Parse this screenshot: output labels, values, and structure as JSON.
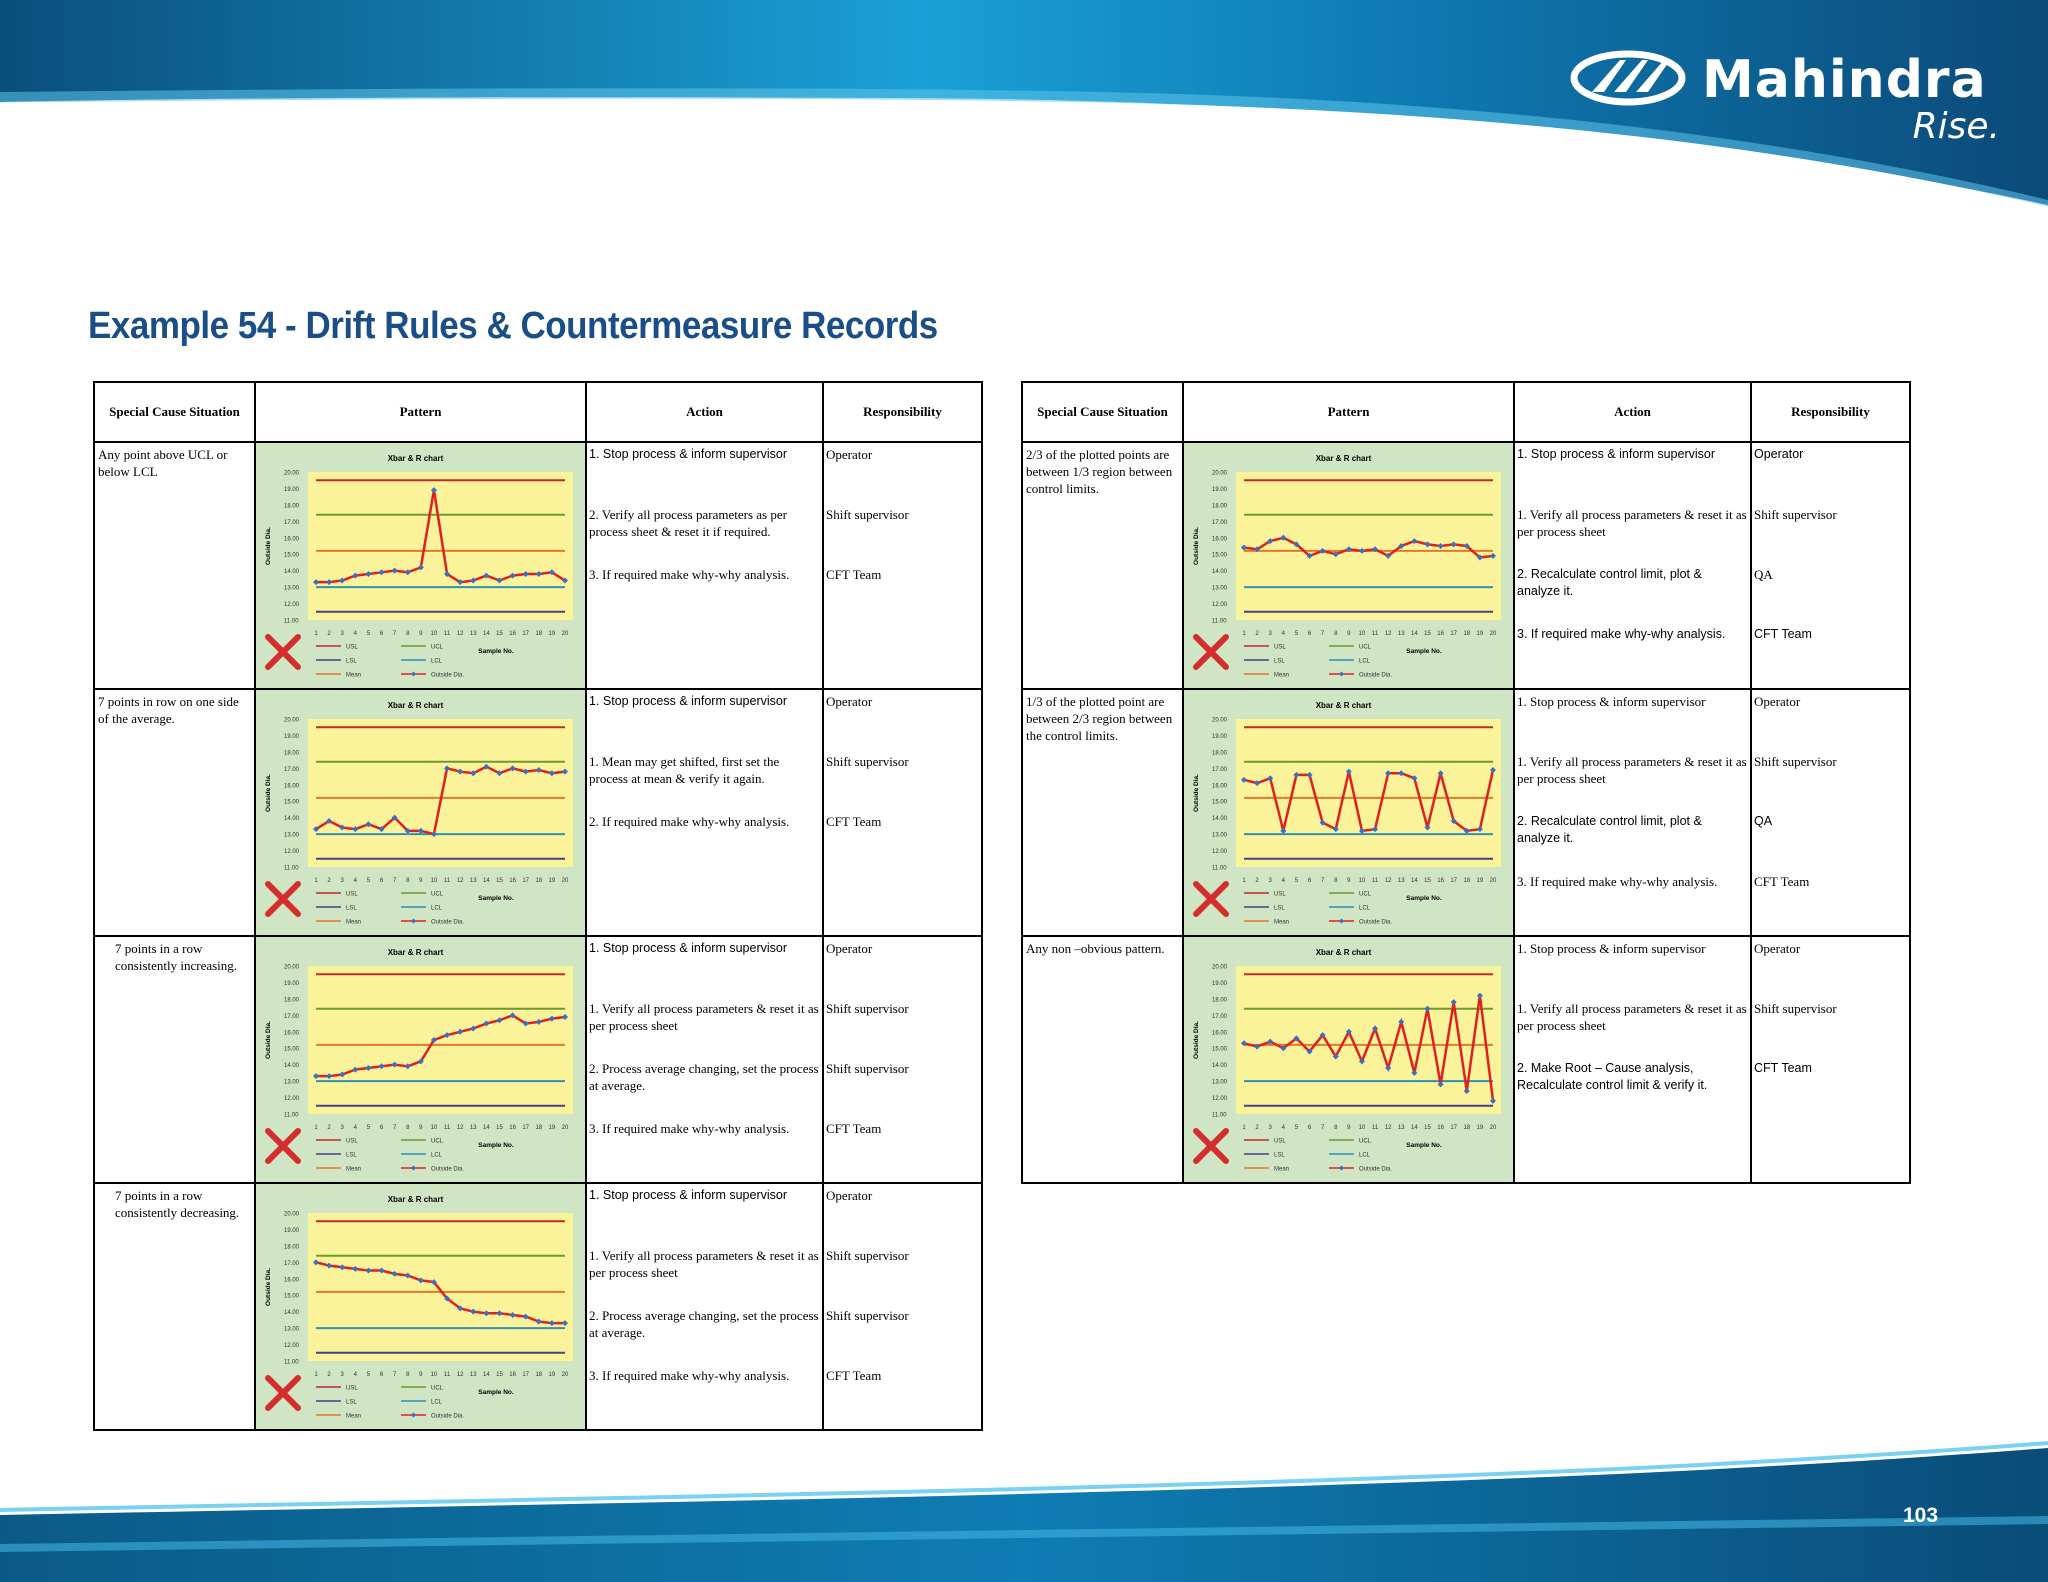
{
  "brand": {
    "name": "Mahindra",
    "tagline": "Rise."
  },
  "page_title": "Example 54 - Drift Rules & Countermeasure Records",
  "page_number": "103",
  "table_headers": [
    "Special Cause Situation",
    "Pattern",
    "Action",
    "Responsibility"
  ],
  "chart_common": {
    "title": "Xbar & R chart",
    "xlabel": "Sample No.",
    "ylabel": "Outside Dia.",
    "y_ticks": [
      "20.00",
      "19.00",
      "18.00",
      "17.00",
      "16.00",
      "15.00",
      "14.00",
      "13.00",
      "12.00",
      "11.00"
    ],
    "x_ticks": [
      "1",
      "2",
      "3",
      "4",
      "5",
      "6",
      "7",
      "8",
      "9",
      "10",
      "11",
      "12",
      "13",
      "14",
      "15",
      "16",
      "17",
      "18",
      "19",
      "20"
    ],
    "legend": [
      "USL",
      "UCL",
      "LSL",
      "LCL",
      "Mean",
      "Outside Dia."
    ],
    "ylim": [
      11,
      20
    ],
    "limits": {
      "USL": 19.5,
      "UCL": 17.4,
      "Mean": 15.2,
      "LCL": 13.0,
      "LSL": 11.5
    },
    "colors": {
      "USL": "#c0282d",
      "UCL": "#6c9a2c",
      "LSL": "#4a3e8a",
      "LCL": "#2f8fb8",
      "Mean": "#e07b2a",
      "series_line": "#e02020",
      "series_point": "#3a6fc4",
      "plot_bg": "#fbf39a",
      "panel_bg": "#cfe5c4",
      "x_mark": "#d42d2d"
    }
  },
  "left_rows": [
    {
      "situation": "Any point above UCL or below LCL",
      "indent": false,
      "chart_data": {
        "type": "line",
        "x": [
          1,
          2,
          3,
          4,
          5,
          6,
          7,
          8,
          9,
          10,
          11,
          12,
          13,
          14,
          15,
          16,
          17,
          18,
          19,
          20
        ],
        "series": [
          {
            "name": "Outside Dia.",
            "values": [
              13.3,
              13.3,
              13.4,
              13.7,
              13.8,
              13.9,
              14.0,
              13.9,
              14.2,
              18.9,
              13.8,
              13.3,
              13.4,
              13.7,
              13.4,
              13.7,
              13.8,
              13.8,
              13.9,
              13.4
            ]
          }
        ],
        "ylim": [
          11,
          20
        ]
      },
      "lines": [
        {
          "action": "1. Stop process & inform supervisor",
          "action_font": "sans",
          "resp": "Operator",
          "resp_font": "serif"
        },
        {
          "action": "2. Verify all process parameters as per process sheet & reset it if required.",
          "action_font": "serif",
          "resp": "Shift supervisor",
          "resp_font": "serif"
        },
        {
          "action": "3. If required make why-why analysis.",
          "action_font": "serif",
          "resp": "CFT Team",
          "resp_font": "serif"
        }
      ]
    },
    {
      "situation": "7 points in row on one side of the average.",
      "indent": false,
      "chart_data": {
        "type": "line",
        "x": [
          1,
          2,
          3,
          4,
          5,
          6,
          7,
          8,
          9,
          10,
          11,
          12,
          13,
          14,
          15,
          16,
          17,
          18,
          19,
          20
        ],
        "series": [
          {
            "name": "Outside Dia.",
            "values": [
              13.3,
              13.8,
              13.4,
              13.3,
              13.6,
              13.3,
              14.0,
              13.2,
              13.2,
              13.0,
              17.0,
              16.8,
              16.7,
              17.1,
              16.7,
              17.0,
              16.8,
              16.9,
              16.7,
              16.8
            ]
          }
        ],
        "ylim": [
          11,
          20
        ]
      },
      "lines": [
        {
          "action": "1. Stop process & inform supervisor",
          "action_font": "sans",
          "resp": "Operator",
          "resp_font": "serif"
        },
        {
          "action": "1. Mean may get shifted, first set the process at mean & verify it again.",
          "action_font": "serif",
          "resp": "Shift supervisor",
          "resp_font": "serif"
        },
        {
          "action": "2. If required make why-why analysis.",
          "action_font": "serif",
          "resp": "CFT Team",
          "resp_font": "serif"
        }
      ]
    },
    {
      "situation": "7 points in a row consistently increasing.",
      "indent": true,
      "chart_data": {
        "type": "line",
        "x": [
          1,
          2,
          3,
          4,
          5,
          6,
          7,
          8,
          9,
          10,
          11,
          12,
          13,
          14,
          15,
          16,
          17,
          18,
          19,
          20
        ],
        "series": [
          {
            "name": "Outside Dia.",
            "values": [
              13.3,
              13.3,
              13.4,
              13.7,
              13.8,
              13.9,
              14.0,
              13.9,
              14.2,
              15.5,
              15.8,
              16.0,
              16.2,
              16.5,
              16.7,
              17.0,
              16.5,
              16.6,
              16.8,
              16.9
            ]
          }
        ],
        "ylim": [
          11,
          20
        ]
      },
      "lines": [
        {
          "action": "1. Stop process & inform supervisor",
          "action_font": "sans",
          "resp": "Operator",
          "resp_font": "serif"
        },
        {
          "action": "1. Verify all process parameters & reset it as per process sheet",
          "action_font": "serif",
          "resp": "Shift supervisor",
          "resp_font": "serif"
        },
        {
          "action": "2. Process average changing, set the process at average.",
          "action_font": "serif",
          "resp": "Shift supervisor",
          "resp_font": "serif"
        },
        {
          "action": "3. If required make why-why analysis.",
          "action_font": "serif",
          "resp": "CFT Team",
          "resp_font": "serif"
        }
      ]
    },
    {
      "situation": "7 points in a row consistently decreasing.",
      "indent": true,
      "chart_data": {
        "type": "line",
        "x": [
          1,
          2,
          3,
          4,
          5,
          6,
          7,
          8,
          9,
          10,
          11,
          12,
          13,
          14,
          15,
          16,
          17,
          18,
          19,
          20
        ],
        "series": [
          {
            "name": "Outside Dia.",
            "values": [
              17.0,
              16.8,
              16.7,
              16.6,
              16.5,
              16.5,
              16.3,
              16.2,
              15.9,
              15.8,
              14.8,
              14.2,
              14.0,
              13.9,
              13.9,
              13.8,
              13.7,
              13.4,
              13.3,
              13.3
            ]
          }
        ],
        "ylim": [
          11,
          20
        ]
      },
      "lines": [
        {
          "action": "1. Stop process & inform supervisor",
          "action_font": "sans",
          "resp": "Operator",
          "resp_font": "serif"
        },
        {
          "action": "1. Verify all process parameters & reset it as per process sheet",
          "action_font": "serif",
          "resp": "Shift supervisor",
          "resp_font": "serif"
        },
        {
          "action": "2. Process average changing, set the process at average.",
          "action_font": "serif",
          "resp": "Shift supervisor",
          "resp_font": "serif"
        },
        {
          "action": "3. If required make why-why analysis.",
          "action_font": "serif",
          "resp": "CFT Team",
          "resp_font": "serif"
        }
      ]
    }
  ],
  "right_rows": [
    {
      "situation": "2/3 of the plotted points are between 1/3 region between control limits.",
      "indent": false,
      "chart_data": {
        "type": "line",
        "x": [
          1,
          2,
          3,
          4,
          5,
          6,
          7,
          8,
          9,
          10,
          11,
          12,
          13,
          14,
          15,
          16,
          17,
          18,
          19,
          20
        ],
        "series": [
          {
            "name": "Outside Dia.",
            "values": [
              15.4,
              15.3,
              15.8,
              16.0,
              15.6,
              14.9,
              15.2,
              15.0,
              15.3,
              15.2,
              15.3,
              14.9,
              15.5,
              15.8,
              15.6,
              15.5,
              15.6,
              15.5,
              14.8,
              14.9
            ]
          }
        ],
        "ylim": [
          11,
          20
        ]
      },
      "lines": [
        {
          "action": "1. Stop process & inform supervisor",
          "action_font": "sans",
          "resp": "Operator",
          "resp_font": "sans"
        },
        {
          "action": "1. Verify all process parameters & reset it as per process sheet",
          "action_font": "serif",
          "resp": "Shift supervisor",
          "resp_font": "serif"
        },
        {
          "action": "2. Recalculate control limit, plot & analyze it.",
          "action_font": "sans",
          "resp": "QA",
          "resp_font": "serif"
        },
        {
          "action": "3. If required make why-why analysis.",
          "action_font": "sans",
          "resp": "CFT Team",
          "resp_font": "sans"
        }
      ]
    },
    {
      "situation": "1/3 of the plotted point are between 2/3 region between the control limits.",
      "indent": false,
      "chart_data": {
        "type": "line",
        "x": [
          1,
          2,
          3,
          4,
          5,
          6,
          7,
          8,
          9,
          10,
          11,
          12,
          13,
          14,
          15,
          16,
          17,
          18,
          19,
          20
        ],
        "series": [
          {
            "name": "Outside Dia.",
            "values": [
              16.3,
              16.1,
              16.4,
              13.2,
              16.6,
              16.6,
              13.7,
              13.3,
              16.8,
              13.2,
              13.3,
              16.7,
              16.7,
              16.4,
              13.4,
              16.7,
              13.8,
              13.2,
              13.3,
              16.9
            ]
          }
        ],
        "ylim": [
          11,
          20
        ]
      },
      "lines": [
        {
          "action": "1. Stop process & inform supervisor",
          "action_font": "serif",
          "resp": "Operator",
          "resp_font": "serif"
        },
        {
          "action": "1. Verify all process parameters & reset it as per process sheet",
          "action_font": "serif",
          "resp": "Shift supervisor",
          "resp_font": "serif"
        },
        {
          "action": "2. Recalculate control limit, plot & analyze it.",
          "action_font": "sans",
          "resp": "QA",
          "resp_font": "sans"
        },
        {
          "action": "3. If required make why-why analysis.",
          "action_font": "serif",
          "resp": "CFT Team",
          "resp_font": "serif"
        }
      ]
    },
    {
      "situation": "Any non –obvious pattern.",
      "indent": false,
      "chart_data": {
        "type": "line",
        "x": [
          1,
          2,
          3,
          4,
          5,
          6,
          7,
          8,
          9,
          10,
          11,
          12,
          13,
          14,
          15,
          16,
          17,
          18,
          19,
          20
        ],
        "series": [
          {
            "name": "Outside Dia.",
            "values": [
              15.3,
              15.1,
              15.4,
              15.0,
              15.6,
              14.8,
              15.8,
              14.5,
              16.0,
              14.2,
              16.2,
              13.8,
              16.6,
              13.5,
              17.4,
              12.8,
              17.8,
              12.4,
              18.2,
              11.8
            ]
          }
        ],
        "ylim": [
          11,
          20
        ]
      },
      "lines": [
        {
          "action": "1. Stop process & inform supervisor",
          "action_font": "serif",
          "resp": "Operator",
          "resp_font": "serif"
        },
        {
          "action": "1. Verify all process parameters & reset it as per process sheet",
          "action_font": "serif",
          "resp": "Shift supervisor",
          "resp_font": "serif"
        },
        {
          "action": "2. Make Root – Cause analysis, Recalculate control limit & verify it.",
          "action_font": "sans",
          "resp": "CFT Team",
          "resp_font": "sans"
        }
      ]
    }
  ]
}
